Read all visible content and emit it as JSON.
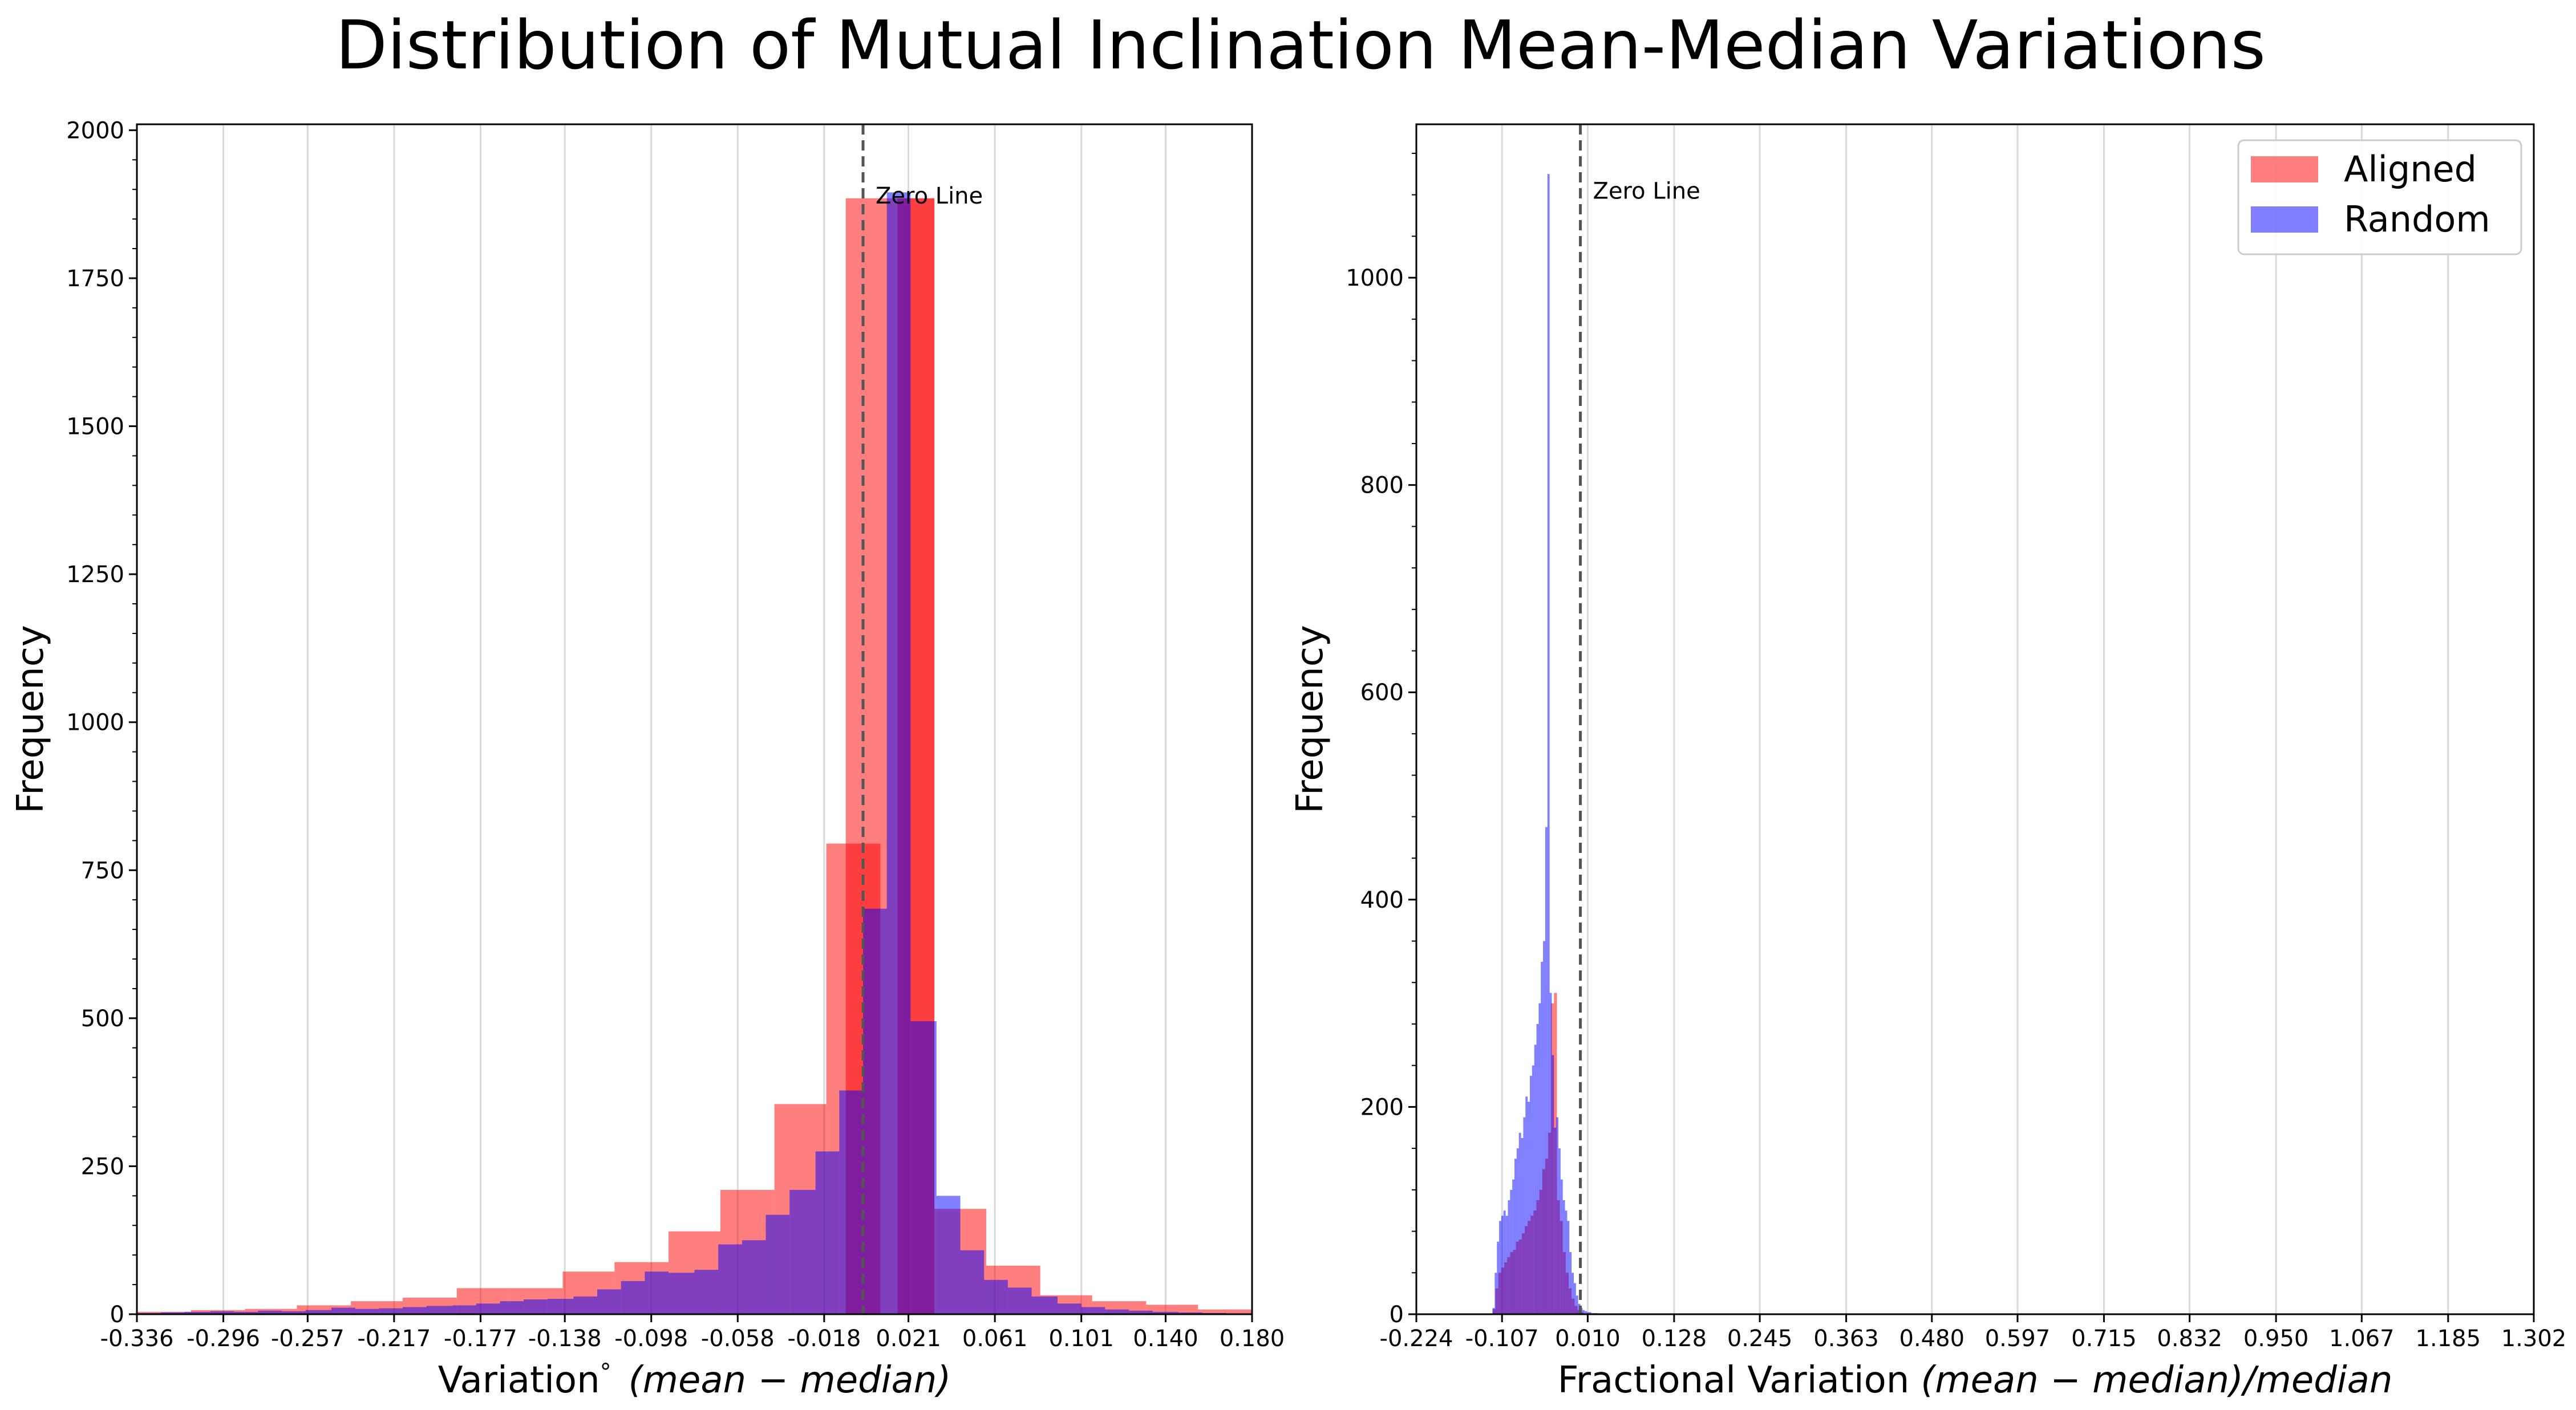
{
  "figure": {
    "title": "Distribution of Mutual Inclination Mean-Median Variations"
  },
  "colors": {
    "aligned": "#ff0000",
    "random": "#0000ff",
    "overlap_note": "alpha 0.5 overlay",
    "zero_line": "#555555",
    "grid": "#d9d9d9"
  },
  "chart_data": [
    {
      "type": "bar",
      "subtype": "histogram",
      "xlabel_prefix": "Variation",
      "xlabel_degree": "°",
      "xlabel_math": "(mean − median)",
      "ylabel": "Frequency",
      "xlim": [
        -0.336,
        0.18
      ],
      "ylim": [
        0,
        2010
      ],
      "xticks": [
        "-0.336",
        "-0.296",
        "-0.257",
        "-0.217",
        "-0.177",
        "-0.138",
        "-0.098",
        "-0.058",
        "-0.018",
        "0.021",
        "0.061",
        "0.101",
        "0.140",
        "0.180"
      ],
      "xtick_values": [
        -0.336,
        -0.296,
        -0.257,
        -0.217,
        -0.177,
        -0.138,
        -0.098,
        -0.058,
        -0.018,
        0.021,
        0.061,
        0.101,
        0.14,
        0.18
      ],
      "yticks": [
        "0",
        "250",
        "500",
        "750",
        "1000",
        "1250",
        "1500",
        "1750",
        "2000"
      ],
      "ytick_values": [
        0,
        250,
        500,
        750,
        1000,
        1250,
        1500,
        1750,
        2000
      ],
      "grid": "vertical",
      "annotation": {
        "text": "Zero Line",
        "x": 0,
        "y": 1900
      },
      "series": [
        {
          "name": "Aligned",
          "color": "#ff0000",
          "bins": [
            [
              -0.336,
              -0.311,
              4
            ],
            [
              -0.311,
              -0.286,
              7
            ],
            [
              -0.286,
              -0.262,
              9
            ],
            [
              -0.262,
              -0.237,
              15
            ],
            [
              -0.237,
              -0.213,
              22
            ],
            [
              -0.213,
              -0.188,
              28
            ],
            [
              -0.188,
              -0.164,
              44
            ],
            [
              -0.164,
              -0.139,
              44
            ],
            [
              -0.139,
              -0.115,
              72
            ],
            [
              -0.115,
              -0.09,
              88
            ],
            [
              -0.09,
              -0.066,
              140
            ],
            [
              -0.066,
              -0.041,
              210
            ],
            [
              -0.041,
              -0.017,
              355
            ],
            [
              -0.017,
              0.008,
              795
            ],
            [
              -0.008,
              0.033,
              1885
            ],
            [
              0.016,
              0.033,
              1885
            ],
            [
              0.033,
              0.057,
              178
            ],
            [
              0.057,
              0.082,
              82
            ],
            [
              0.082,
              0.106,
              32
            ],
            [
              0.106,
              0.131,
              22
            ],
            [
              0.131,
              0.155,
              16
            ],
            [
              0.155,
              0.18,
              8
            ]
          ]
        },
        {
          "name": "Random",
          "color": "#0000ff",
          "bins": [
            [
              -0.336,
              -0.325,
              2
            ],
            [
              -0.325,
              -0.314,
              3
            ],
            [
              -0.314,
              -0.302,
              4
            ],
            [
              -0.302,
              -0.291,
              5
            ],
            [
              -0.291,
              -0.28,
              4
            ],
            [
              -0.28,
              -0.269,
              6
            ],
            [
              -0.269,
              -0.258,
              5
            ],
            [
              -0.258,
              -0.246,
              7
            ],
            [
              -0.246,
              -0.235,
              11
            ],
            [
              -0.235,
              -0.224,
              9
            ],
            [
              -0.224,
              -0.213,
              10
            ],
            [
              -0.213,
              -0.202,
              12
            ],
            [
              -0.202,
              -0.19,
              14
            ],
            [
              -0.19,
              -0.179,
              15
            ],
            [
              -0.179,
              -0.168,
              18
            ],
            [
              -0.168,
              -0.157,
              22
            ],
            [
              -0.157,
              -0.146,
              25
            ],
            [
              -0.146,
              -0.134,
              26
            ],
            [
              -0.134,
              -0.123,
              30
            ],
            [
              -0.123,
              -0.112,
              42
            ],
            [
              -0.112,
              -0.101,
              56
            ],
            [
              -0.101,
              -0.09,
              72
            ],
            [
              -0.09,
              -0.078,
              70
            ],
            [
              -0.078,
              -0.067,
              75
            ],
            [
              -0.067,
              -0.056,
              118
            ],
            [
              -0.056,
              -0.045,
              125
            ],
            [
              -0.045,
              -0.034,
              168
            ],
            [
              -0.034,
              -0.022,
              210
            ],
            [
              -0.022,
              -0.011,
              275
            ],
            [
              -0.011,
              0.0,
              378
            ],
            [
              0.0,
              0.011,
              685
            ],
            [
              0.011,
              0.022,
              1895
            ],
            [
              0.022,
              0.034,
              495
            ],
            [
              0.034,
              0.045,
              200
            ],
            [
              0.045,
              0.056,
              108
            ],
            [
              0.056,
              0.067,
              58
            ],
            [
              0.067,
              0.078,
              45
            ],
            [
              0.078,
              0.09,
              30
            ],
            [
              0.09,
              0.101,
              18
            ],
            [
              0.101,
              0.112,
              12
            ],
            [
              0.112,
              0.123,
              8
            ],
            [
              0.123,
              0.134,
              6
            ],
            [
              0.134,
              0.146,
              4
            ],
            [
              0.146,
              0.157,
              3
            ],
            [
              0.157,
              0.168,
              2
            ],
            [
              0.168,
              0.18,
              1
            ]
          ]
        }
      ]
    },
    {
      "type": "bar",
      "subtype": "histogram",
      "xlabel_prefix": "Fractional Variation",
      "xlabel_math": "(mean − median)/median",
      "ylabel": "Frequency",
      "xlim": [
        -0.224,
        1.302
      ],
      "ylim": [
        0,
        1148
      ],
      "xticks": [
        "-0.224",
        "-0.107",
        "0.010",
        "0.128",
        "0.245",
        "0.363",
        "0.480",
        "0.597",
        "0.715",
        "0.832",
        "0.950",
        "1.067",
        "1.185",
        "1.302"
      ],
      "xtick_values": [
        -0.224,
        -0.107,
        0.01,
        0.128,
        0.245,
        0.363,
        0.48,
        0.597,
        0.715,
        0.832,
        0.95,
        1.067,
        1.185,
        1.302
      ],
      "yticks": [
        "0",
        "200",
        "400",
        "600",
        "800",
        "1000"
      ],
      "ytick_values": [
        0,
        200,
        400,
        600,
        800,
        1000
      ],
      "grid": "vertical",
      "annotation": {
        "text": "Zero Line",
        "x": 0,
        "y": 1090
      },
      "legend": {
        "position": "top-right",
        "entries": [
          "Aligned",
          "Random"
        ]
      },
      "series": [
        {
          "name": "Aligned",
          "color": "#ff0000",
          "bin_start": -0.12,
          "bin_width": 0.004,
          "counts": [
            5,
            25,
            40,
            45,
            50,
            55,
            60,
            62,
            70,
            72,
            78,
            85,
            90,
            95,
            100,
            110,
            120,
            140,
            150,
            175,
            300,
            310,
            110,
            90,
            60,
            40,
            25,
            15,
            8,
            4,
            2
          ]
        },
        {
          "name": "Random",
          "color": "#0000ff",
          "bin_start": -0.12,
          "bin_width": 0.003,
          "counts": [
            6,
            40,
            70,
            90,
            95,
            100,
            95,
            110,
            120,
            130,
            150,
            160,
            175,
            170,
            190,
            210,
            205,
            230,
            240,
            260,
            280,
            300,
            340,
            360,
            470,
            1100,
            310,
            250,
            180,
            190,
            160,
            130,
            110,
            100,
            90,
            60,
            40,
            30,
            18,
            10,
            6,
            4,
            3,
            2,
            2,
            1,
            1,
            1
          ]
        }
      ]
    }
  ]
}
